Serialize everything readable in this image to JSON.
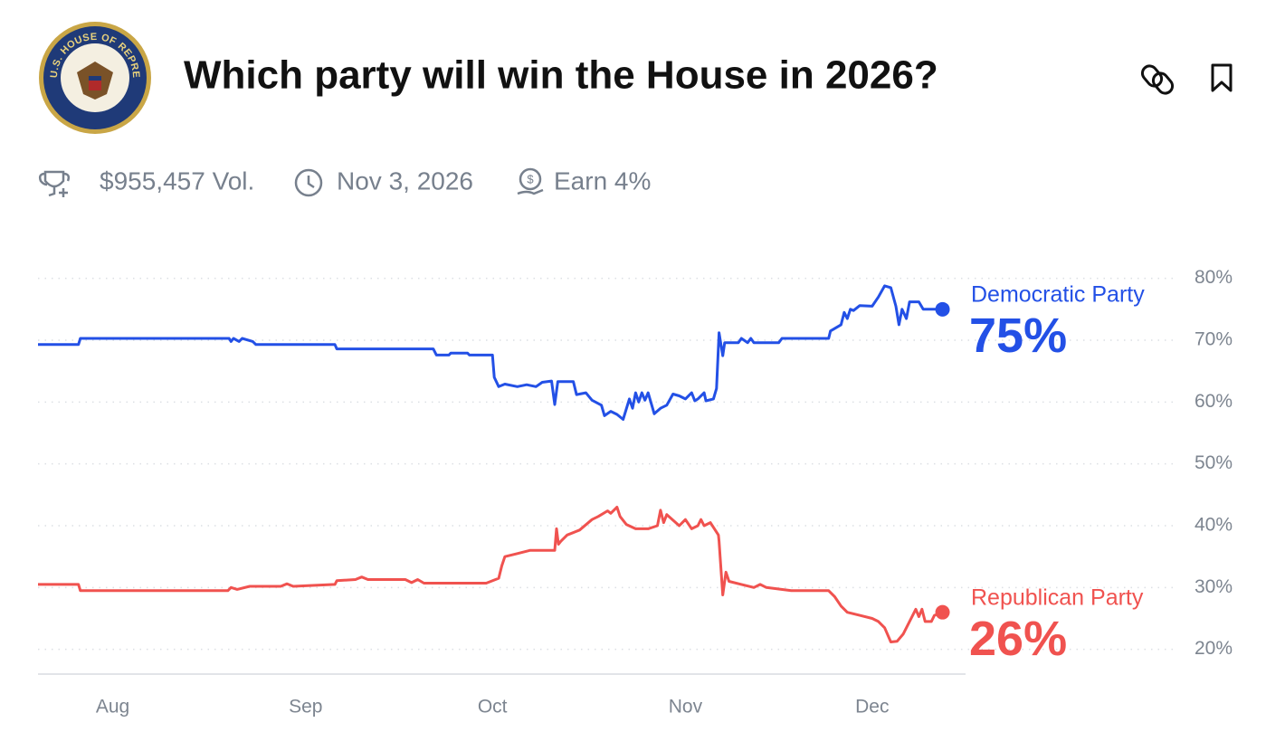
{
  "header": {
    "logo_text": "U.S. HOUSE OF REPRESENTATIVES",
    "title": "Which party will win the House in 2026?"
  },
  "meta": {
    "volume": "$955,457 Vol.",
    "end_date": "Nov 3, 2026",
    "earn": "Earn 4%"
  },
  "chart_data": {
    "type": "line",
    "xlim": [
      201,
      350
    ],
    "xticks": [
      {
        "value": 213,
        "label": "Aug"
      },
      {
        "value": 244,
        "label": "Sep"
      },
      {
        "value": 274,
        "label": "Oct"
      },
      {
        "value": 305,
        "label": "Nov"
      },
      {
        "value": 335,
        "label": "Dec"
      }
    ],
    "ylim": [
      16,
      82
    ],
    "yticks": [
      {
        "value": 80,
        "label": "80%"
      },
      {
        "value": 70,
        "label": "70%"
      },
      {
        "value": 60,
        "label": "60%"
      },
      {
        "value": 50,
        "label": "50%"
      },
      {
        "value": 40,
        "label": "40%"
      },
      {
        "value": 30,
        "label": "30%"
      },
      {
        "value": 20,
        "label": "20%"
      }
    ],
    "grid": true,
    "series": [
      {
        "name": "Democratic Party",
        "color": "#2350e6",
        "x": [
          201,
          207.5,
          207.8,
          231.7,
          232,
          232.4,
          233.3,
          233.8,
          235.5,
          236,
          248.7,
          249,
          264.5,
          265,
          267,
          267.3,
          270,
          270.3,
          274,
          274.3,
          275,
          276,
          278,
          279.5,
          281,
          282,
          283.5,
          284,
          284.5,
          287,
          287.5,
          289,
          290,
          291.5,
          292,
          293,
          294,
          295,
          296,
          296.5,
          297,
          297.5,
          298,
          298.5,
          299,
          300,
          301,
          302,
          303,
          304,
          305,
          306,
          306.5,
          307,
          308,
          308.3,
          309.5,
          310,
          310.4,
          311,
          311.3,
          313.5,
          314,
          315,
          315.5,
          316,
          320,
          320.5,
          328,
          328.3,
          330,
          330.5,
          331,
          331.5,
          332,
          333,
          335,
          336,
          337,
          338,
          338.8,
          339.3,
          339.8,
          340.5,
          341,
          342.5,
          343.2,
          344.3,
          346.3
        ],
        "values": [
          69.3,
          69.3,
          70.3,
          70.3,
          69.8,
          70.3,
          69.8,
          70.3,
          69.8,
          69.3,
          69.3,
          68.6,
          68.6,
          67.6,
          67.6,
          67.9,
          67.9,
          67.6,
          67.6,
          64,
          62.5,
          62.9,
          62.5,
          62.8,
          62.5,
          63.2,
          63.4,
          59.6,
          63.3,
          63.3,
          61.2,
          61.5,
          60.3,
          59.5,
          57.8,
          58.5,
          58,
          57.2,
          60.5,
          59,
          61.5,
          60,
          61.5,
          60.3,
          61.5,
          58.1,
          59,
          59.5,
          61.3,
          61,
          60.5,
          61.5,
          60.2,
          60.5,
          61.5,
          60.2,
          60.5,
          62.2,
          71.2,
          67.5,
          69.6,
          69.6,
          70.3,
          69.6,
          70.3,
          69.6,
          69.6,
          70.3,
          70.3,
          71.5,
          72.5,
          74.5,
          73.5,
          75,
          74.8,
          75.6,
          75.5,
          77,
          78.8,
          78.5,
          75.5,
          72.5,
          75,
          73.5,
          76.2,
          76.2,
          75,
          75,
          75
        ],
        "value_labels": [
          null,
          null,
          null,
          null,
          null,
          null,
          null,
          null,
          null,
          null,
          null,
          null,
          null,
          null,
          null,
          null,
          null,
          null,
          null,
          null,
          null,
          null,
          null,
          null,
          null,
          null,
          null,
          null,
          null,
          null,
          null,
          null,
          null,
          null,
          null,
          null,
          null,
          null,
          null,
          null,
          null,
          null,
          null,
          null,
          null,
          null,
          null,
          null,
          null,
          null,
          null,
          null,
          null,
          null,
          null,
          null,
          null,
          null,
          null,
          null,
          null,
          null,
          null,
          null,
          null,
          null,
          null,
          null,
          null,
          null,
          null,
          null,
          null,
          null,
          null,
          null,
          null,
          null,
          null,
          null,
          null,
          null,
          null,
          null,
          null,
          null,
          null,
          null,
          "75%"
        ]
      },
      {
        "name": "Republican Party",
        "color": "#f0524f",
        "x": [
          201,
          207.5,
          207.8,
          231.5,
          232,
          233,
          235,
          240,
          241,
          242,
          248.7,
          249,
          252,
          253,
          254,
          260,
          261,
          262,
          263,
          273,
          275,
          275.5,
          276,
          278,
          280,
          284,
          284.3,
          284.6,
          285,
          286,
          288,
          290,
          291,
          292.5,
          293,
          294,
          294.5,
          295.5,
          297,
          299,
          300.5,
          301,
          301.5,
          302,
          304,
          305,
          306,
          307,
          307.5,
          308,
          309,
          310.3,
          310.4,
          311,
          311.5,
          312,
          314,
          316,
          317,
          318,
          322,
          328,
          329,
          330,
          331,
          333,
          335,
          336,
          337,
          338,
          339,
          340,
          341,
          342,
          342.5,
          343,
          343.5,
          344.5,
          345,
          346.3
        ],
        "values": [
          30.5,
          30.5,
          29.5,
          29.5,
          30,
          29.7,
          30.2,
          30.2,
          30.6,
          30.2,
          30.5,
          31.1,
          31.3,
          31.7,
          31.3,
          31.3,
          30.8,
          31.3,
          30.7,
          30.7,
          31.5,
          33.5,
          35,
          35.5,
          36,
          36,
          39.5,
          37,
          37.5,
          38.5,
          39.3,
          41,
          41.5,
          42.4,
          42,
          43,
          41.5,
          40.2,
          39.5,
          39.5,
          40,
          42.5,
          40.5,
          41.8,
          40,
          41,
          39.5,
          40,
          41,
          40,
          40.5,
          38.5,
          37.5,
          28.8,
          32.5,
          31,
          30.5,
          30,
          30.5,
          30,
          29.5,
          29.5,
          28.5,
          27,
          26,
          25.5,
          25,
          24.5,
          23.5,
          21.2,
          21.3,
          22.5,
          24.5,
          26.5,
          25.3,
          26.5,
          24.5,
          24.5,
          25.5,
          26
        ],
        "value_labels": [
          null,
          null,
          null,
          null,
          null,
          null,
          null,
          null,
          null,
          null,
          null,
          null,
          null,
          null,
          null,
          null,
          null,
          null,
          null,
          null,
          null,
          null,
          null,
          null,
          null,
          null,
          null,
          null,
          null,
          null,
          null,
          null,
          null,
          null,
          null,
          null,
          null,
          null,
          null,
          null,
          null,
          null,
          null,
          null,
          null,
          null,
          null,
          null,
          null,
          null,
          null,
          null,
          null,
          null,
          null,
          null,
          null,
          null,
          null,
          null,
          null,
          null,
          null,
          null,
          null,
          null,
          null,
          null,
          null,
          null,
          null,
          null,
          null,
          null,
          null,
          null,
          null,
          null,
          null,
          "26%"
        ]
      }
    ]
  }
}
